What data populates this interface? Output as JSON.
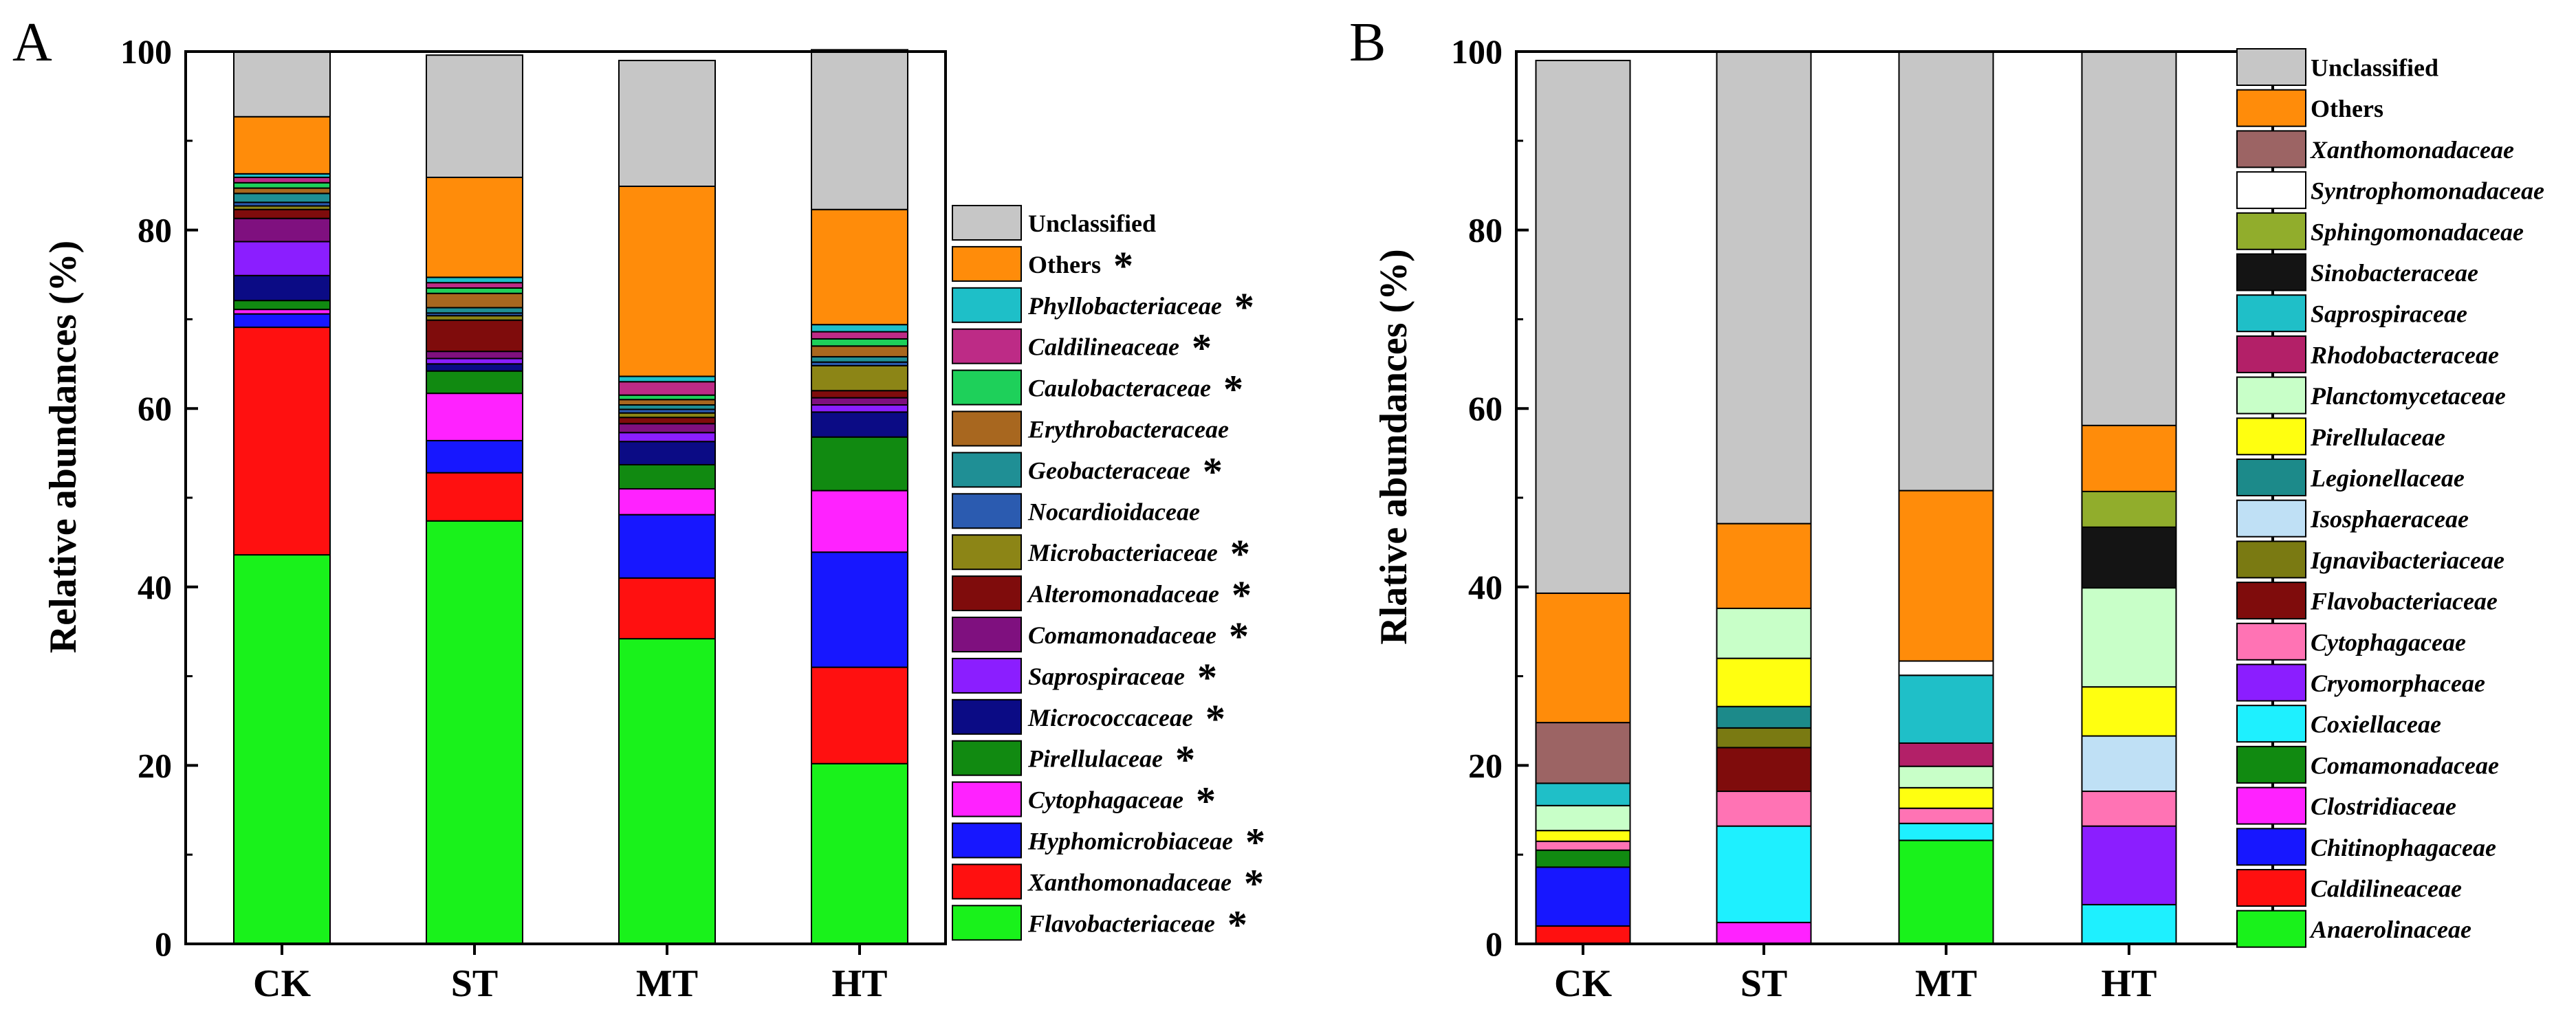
{
  "chart_data": [
    {
      "panel": "A",
      "type": "bar",
      "stacked": true,
      "ylabel": "Relative abundances (%)",
      "xlabel": "",
      "ylim": [
        0,
        100
      ],
      "yticks": [
        "0",
        "20",
        "40",
        "60",
        "80",
        "100"
      ],
      "categories": [
        "CK",
        "ST",
        "MT",
        "HT"
      ],
      "legend_position": "right",
      "series": [
        {
          "name": "Flavobacteriaceae",
          "marked": true,
          "italic": true,
          "color": "#19f21b",
          "values": [
            43.6,
            47.4,
            34.2,
            20.2
          ]
        },
        {
          "name": "Xanthomonadaceae",
          "marked": true,
          "italic": true,
          "color": "#ff1010",
          "values": [
            25.5,
            5.4,
            6.8,
            10.8
          ]
        },
        {
          "name": "Hyphomicrobiaceae",
          "marked": true,
          "italic": true,
          "color": "#1717ff",
          "values": [
            1.5,
            3.6,
            7.1,
            12.9
          ]
        },
        {
          "name": "Cytophagaceae",
          "marked": true,
          "italic": true,
          "color": "#ff22ff",
          "values": [
            0.5,
            5.3,
            2.9,
            6.9
          ]
        },
        {
          "name": "Pirellulaceae",
          "marked": true,
          "italic": true,
          "color": "#118a11",
          "values": [
            1.0,
            2.5,
            2.7,
            6.0
          ]
        },
        {
          "name": "Micrococcaceae",
          "marked": true,
          "italic": true,
          "color": "#0b0b85",
          "values": [
            2.8,
            0.8,
            2.6,
            2.8
          ]
        },
        {
          "name": "Saprospiraceae",
          "marked": true,
          "italic": true,
          "color": "#8b1eff",
          "values": [
            3.8,
            0.6,
            1.0,
            0.8
          ]
        },
        {
          "name": "Comamonadaceae",
          "marked": true,
          "italic": true,
          "color": "#7f107f",
          "values": [
            2.6,
            0.8,
            1.0,
            0.8
          ]
        },
        {
          "name": "Alteromonadaceae",
          "marked": true,
          "italic": true,
          "color": "#7f0c0c",
          "values": [
            1.0,
            3.5,
            0.7,
            0.8
          ]
        },
        {
          "name": "Microbacteriaceae",
          "marked": true,
          "italic": true,
          "color": "#8c8516",
          "values": [
            0.4,
            0.5,
            0.5,
            2.8
          ]
        },
        {
          "name": "Nocardioidaceae",
          "marked": false,
          "italic": true,
          "color": "#2b5bb0",
          "values": [
            0.4,
            0.3,
            0.4,
            0.4
          ]
        },
        {
          "name": "Geobacteraceae",
          "marked": true,
          "italic": true,
          "color": "#1f8f95",
          "values": [
            1.0,
            0.6,
            0.5,
            0.6
          ]
        },
        {
          "name": "Erythrobacteraceae",
          "marked": false,
          "italic": true,
          "color": "#a8671f",
          "values": [
            0.6,
            1.6,
            0.6,
            1.2
          ]
        },
        {
          "name": "Caulobacteraceae",
          "marked": true,
          "italic": true,
          "color": "#1ed05a",
          "values": [
            0.6,
            0.6,
            0.5,
            0.8
          ]
        },
        {
          "name": "Caldilineaceae",
          "marked": true,
          "italic": true,
          "color": "#bd2b86",
          "values": [
            0.6,
            0.6,
            1.5,
            0.8
          ]
        },
        {
          "name": "Phyllobacteriaceae",
          "marked": true,
          "italic": true,
          "color": "#1ebfc8",
          "values": [
            0.4,
            0.6,
            0.6,
            0.8
          ]
        },
        {
          "name": "Others",
          "marked": true,
          "italic": false,
          "color": "#ff8c0a",
          "values": [
            6.4,
            11.2,
            21.3,
            12.9
          ]
        },
        {
          "name": "Unclassified",
          "marked": false,
          "italic": false,
          "color": "#c6c6c6",
          "values": [
            7.3,
            13.7,
            14.1,
            17.9
          ]
        }
      ]
    },
    {
      "panel": "B",
      "type": "bar",
      "stacked": true,
      "ylabel": "Rlative abundances (%)",
      "xlabel": "",
      "ylim": [
        0,
        100
      ],
      "yticks": [
        "0",
        "20",
        "40",
        "60",
        "80",
        "100"
      ],
      "categories": [
        "CK",
        "ST",
        "MT",
        "HT"
      ],
      "legend_position": "right",
      "series": [
        {
          "name": "Anaerolinaceae",
          "italic": true,
          "color": "#19f21b",
          "values": [
            0,
            0,
            11.6,
            0
          ]
        },
        {
          "name": "Caldilineaceae",
          "italic": true,
          "color": "#ff1010",
          "values": [
            2.0,
            0,
            0,
            0
          ]
        },
        {
          "name": "Chitinophagaceae",
          "italic": true,
          "color": "#1717ff",
          "values": [
            6.6,
            0,
            0,
            0
          ]
        },
        {
          "name": "Clostridiaceae",
          "italic": true,
          "color": "#ff22ff",
          "values": [
            0,
            2.4,
            0,
            0
          ]
        },
        {
          "name": "Comamonadaceae",
          "italic": true,
          "color": "#118a11",
          "values": [
            1.9,
            0,
            0,
            0
          ]
        },
        {
          "name": "Coxiellaceae",
          "italic": true,
          "color": "#1ef0ff",
          "values": [
            0,
            10.8,
            1.9,
            4.4
          ]
        },
        {
          "name": "Cryomorphaceae",
          "italic": true,
          "color": "#8b1eff",
          "values": [
            0,
            0,
            0,
            8.8
          ]
        },
        {
          "name": "Cytophagaceae",
          "italic": true,
          "color": "#ff73b4",
          "values": [
            1.0,
            3.9,
            1.7,
            3.9
          ]
        },
        {
          "name": "Flavobacteriaceae",
          "italic": true,
          "color": "#7f0c0c",
          "values": [
            0,
            4.9,
            0,
            0
          ]
        },
        {
          "name": "Ignavibacteriaceae",
          "italic": true,
          "color": "#7a7a12",
          "values": [
            0,
            2.2,
            0,
            0
          ]
        },
        {
          "name": "Isosphaeraceae",
          "italic": true,
          "color": "#bfe0f5",
          "values": [
            0,
            0,
            0,
            6.2
          ]
        },
        {
          "name": "Legionellaceae",
          "italic": true,
          "color": "#1c8a8a",
          "values": [
            0,
            2.4,
            0,
            0
          ]
        },
        {
          "name": "Pirellulaceae",
          "italic": true,
          "color": "#ffff10",
          "values": [
            1.2,
            5.4,
            2.3,
            5.5
          ]
        },
        {
          "name": "Planctomycetaceae",
          "italic": true,
          "color": "#c8ffc8",
          "values": [
            2.8,
            5.6,
            2.4,
            11.1
          ]
        },
        {
          "name": "Rhodobacteraceae",
          "italic": true,
          "color": "#b32068",
          "values": [
            0,
            0,
            2.6,
            0
          ]
        },
        {
          "name": "Saprospiraceae",
          "italic": true,
          "color": "#1fbfc8",
          "values": [
            2.5,
            0,
            7.6,
            0
          ]
        },
        {
          "name": "Sinobacteraceae",
          "italic": true,
          "color": "#141414",
          "values": [
            0,
            0,
            0,
            6.8
          ]
        },
        {
          "name": "Sphingomonadaceae",
          "italic": true,
          "color": "#91ad2c",
          "values": [
            0,
            0,
            0,
            4.0
          ]
        },
        {
          "name": "Syntrophomonadaceae",
          "italic": true,
          "color": "#ffffff",
          "values": [
            0,
            0,
            1.6,
            0
          ]
        },
        {
          "name": "Xanthomonadaceae",
          "italic": true,
          "color": "#9c6464",
          "values": [
            6.8,
            0,
            0,
            0
          ]
        },
        {
          "name": "Others",
          "italic": false,
          "color": "#ff8c0a",
          "values": [
            14.5,
            9.5,
            19.1,
            7.4
          ]
        },
        {
          "name": "Unclassified",
          "italic": false,
          "color": "#c6c6c6",
          "values": [
            59.7,
            52.9,
            49.2,
            41.9
          ]
        }
      ]
    }
  ]
}
